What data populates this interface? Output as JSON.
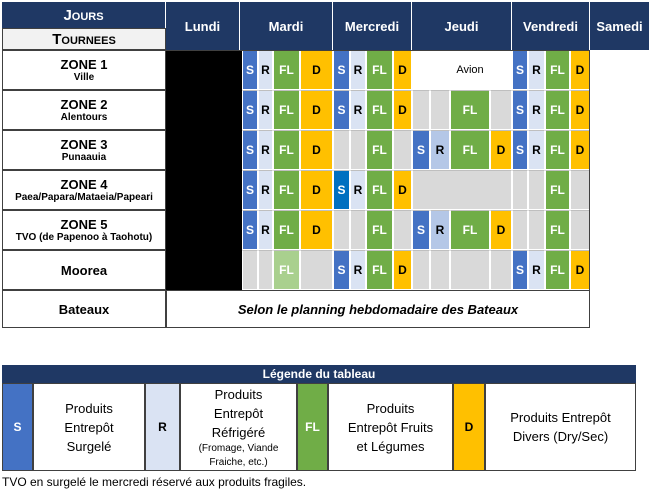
{
  "header": {
    "jours": "Jours",
    "tournees": "Tournees",
    "days": [
      "Lundi",
      "Mardi",
      "Mercredi",
      "Jeudi",
      "Vendredi",
      "Samedi"
    ]
  },
  "rows": [
    {
      "zone": "ZONE 1",
      "sub": "Ville",
      "cells": [
        {
          "text": "S",
          "color": "#4472c4"
        },
        {
          "text": "R",
          "color": "#dae3f3"
        },
        {
          "text": "FL",
          "color": "#70ad47"
        },
        {
          "text": "D",
          "color": "#ffc000"
        },
        {
          "text": "S",
          "color": "#4472c4"
        },
        {
          "text": "R",
          "color": "#dae3f3"
        },
        {
          "text": "FL",
          "color": "#70ad47"
        },
        {
          "text": "D",
          "color": "#ffc000"
        },
        {
          "color": "#ffffff"
        },
        {
          "color": "#ffffff"
        },
        {
          "text": "Avion",
          "color": "#ffffff"
        },
        {
          "color": "#ffffff"
        },
        {
          "text": "S",
          "color": "#4472c4"
        },
        {
          "text": "R",
          "color": "#dae3f3"
        },
        {
          "text": "FL",
          "color": "#70ad47"
        },
        {
          "text": "D",
          "color": "#ffc000"
        }
      ]
    },
    {
      "zone": "ZONE 2",
      "sub": "Alentours",
      "cells": [
        {
          "text": "S",
          "color": "#4472c4"
        },
        {
          "text": "R",
          "color": "#dae3f3"
        },
        {
          "text": "FL",
          "color": "#70ad47"
        },
        {
          "text": "D",
          "color": "#ffc000"
        },
        {
          "text": "S",
          "color": "#4472c4"
        },
        {
          "text": "R",
          "color": "#dae3f3"
        },
        {
          "text": "FL",
          "color": "#70ad47"
        },
        {
          "text": "D",
          "color": "#ffc000"
        },
        {
          "color": "#d9d9d9"
        },
        {
          "color": "#d9d9d9"
        },
        {
          "text": "FL",
          "color": "#70ad47"
        },
        {
          "color": "#d9d9d9"
        },
        {
          "text": "S",
          "color": "#4472c4"
        },
        {
          "text": "R",
          "color": "#dae3f3"
        },
        {
          "text": "FL",
          "color": "#70ad47"
        },
        {
          "text": "D",
          "color": "#ffc000"
        }
      ]
    },
    {
      "zone": "ZONE 3",
      "sub": "Punaauia",
      "cells": [
        {
          "text": "S",
          "color": "#4472c4"
        },
        {
          "text": "R",
          "color": "#dae3f3"
        },
        {
          "text": "FL",
          "color": "#70ad47"
        },
        {
          "text": "D",
          "color": "#ffc000"
        },
        {
          "color": "#d9d9d9"
        },
        {
          "color": "#d9d9d9"
        },
        {
          "text": "FL",
          "color": "#70ad47"
        },
        {
          "color": "#d9d9d9"
        },
        {
          "text": "S",
          "color": "#4472c4"
        },
        {
          "text": "R",
          "color": "#b4c7e7"
        },
        {
          "text": "FL",
          "color": "#70ad47"
        },
        {
          "text": "D",
          "color": "#ffc000"
        },
        {
          "text": "S",
          "color": "#4472c4"
        },
        {
          "text": "R",
          "color": "#dae3f3"
        },
        {
          "text": "FL",
          "color": "#70ad47"
        },
        {
          "text": "D",
          "color": "#ffc000"
        }
      ]
    },
    {
      "zone": "ZONE 4",
      "sub": "Paea/Papara/Mataeia/Papeari",
      "cells": [
        {
          "text": "S",
          "color": "#4472c4"
        },
        {
          "text": "R",
          "color": "#dae3f3"
        },
        {
          "text": "FL",
          "color": "#70ad47"
        },
        {
          "text": "D",
          "color": "#ffc000"
        },
        {
          "text": "S",
          "color": "#0070c0"
        },
        {
          "text": "R",
          "color": "#dae3f3"
        },
        {
          "text": "FL",
          "color": "#70ad47"
        },
        {
          "text": "D",
          "color": "#ffc000"
        },
        {
          "color": "#d9d9d9",
          "span": 4
        },
        {
          "color": "#d9d9d9"
        },
        {
          "color": "#d9d9d9"
        },
        {
          "text": "FL",
          "color": "#70ad47"
        },
        {
          "color": "#d9d9d9"
        }
      ]
    },
    {
      "zone": "ZONE 5",
      "sub": "TVO (de Papenoo à Taohotu)",
      "cells": [
        {
          "text": "S",
          "color": "#4472c4"
        },
        {
          "text": "R",
          "color": "#dae3f3"
        },
        {
          "text": "FL",
          "color": "#70ad47"
        },
        {
          "text": "D",
          "color": "#ffc000"
        },
        {
          "color": "#d9d9d9"
        },
        {
          "color": "#d9d9d9"
        },
        {
          "text": "FL",
          "color": "#70ad47"
        },
        {
          "color": "#d9d9d9"
        },
        {
          "text": "S",
          "color": "#4472c4"
        },
        {
          "text": "R",
          "color": "#b4c7e7"
        },
        {
          "text": "FL",
          "color": "#70ad47"
        },
        {
          "text": "D",
          "color": "#ffc000"
        },
        {
          "color": "#d9d9d9"
        },
        {
          "color": "#d9d9d9"
        },
        {
          "text": "FL",
          "color": "#70ad47"
        },
        {
          "color": "#d9d9d9"
        }
      ]
    },
    {
      "zone": "Moorea",
      "cells": [
        {
          "color": "#d9d9d9"
        },
        {
          "color": "#d9d9d9"
        },
        {
          "text": "FL",
          "color": "#a9d08e"
        },
        {
          "color": "#d9d9d9"
        },
        {
          "text": "S",
          "color": "#4472c4"
        },
        {
          "text": "R",
          "color": "#dae3f3"
        },
        {
          "text": "FL",
          "color": "#70ad47"
        },
        {
          "text": "D",
          "color": "#ffc000"
        },
        {
          "color": "#d9d9d9"
        },
        {
          "color": "#d9d9d9"
        },
        {
          "color": "#d9d9d9"
        },
        {
          "color": "#d9d9d9"
        },
        {
          "text": "S",
          "color": "#4472c4"
        },
        {
          "text": "R",
          "color": "#dae3f3"
        },
        {
          "text": "FL",
          "color": "#70ad47"
        },
        {
          "text": "D",
          "color": "#ffc000"
        }
      ]
    }
  ],
  "bateaux": {
    "zone": "Bateaux",
    "text": "Selon le planning hebdomadaire des Bateaux"
  },
  "legend": {
    "title": "Légende du tableau",
    "items": [
      {
        "code": "S",
        "color": "#4472c4",
        "text": "Produits Entrepôt Surgelé"
      },
      {
        "code": "R",
        "color": "#dae3f3",
        "text": "Produits Entrepôt Réfrigéré",
        "note": "(Fromage, Viande Fraiche, etc.)"
      },
      {
        "code": "FL",
        "color": "#70ad47",
        "text": "Produits Entrepôt Fruits et Légumes"
      },
      {
        "code": "D",
        "color": "#ffc000",
        "text": "Produits Entrepôt Divers (Dry/Sec)"
      }
    ]
  },
  "footnote": "TVO en surgelé le mercredi réservé aux produits fragiles."
}
